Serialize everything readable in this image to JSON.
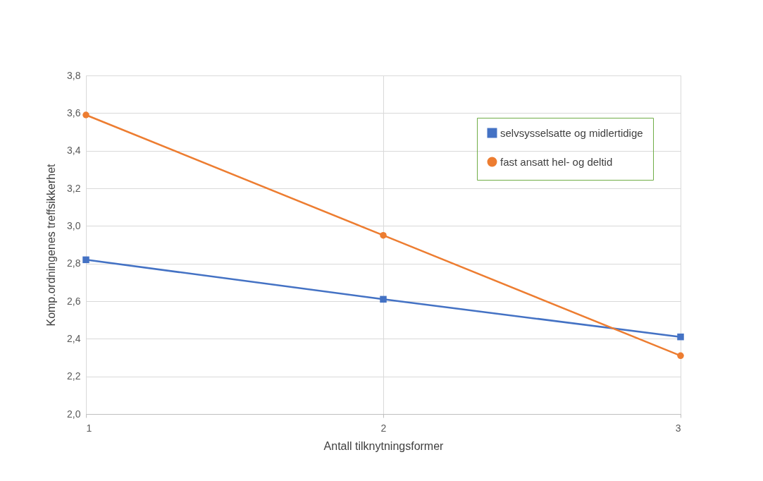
{
  "chart_data": {
    "type": "line",
    "xlabel": "Antall tilknytningsformer",
    "ylabel": "Komp.ordningenes treffsikkerhet",
    "x": [
      1,
      2,
      3
    ],
    "xlim": [
      1,
      3
    ],
    "xticks": [
      1,
      2,
      3
    ],
    "ylim": [
      2.0,
      3.8
    ],
    "yticks": [
      {
        "value": 2.0,
        "label": "2,0"
      },
      {
        "value": 2.2,
        "label": "2,2"
      },
      {
        "value": 2.4,
        "label": "2,4"
      },
      {
        "value": 2.6,
        "label": "2,6"
      },
      {
        "value": 2.8,
        "label": "2,8"
      },
      {
        "value": 3.0,
        "label": "3,0"
      },
      {
        "value": 3.2,
        "label": "3,2"
      },
      {
        "value": 3.4,
        "label": "3,4"
      },
      {
        "value": 3.6,
        "label": "3,6"
      },
      {
        "value": 3.8,
        "label": "3,8"
      }
    ],
    "grid": true,
    "legend": "top right",
    "line_style": "solid",
    "series": [
      {
        "name": "selvsysselsatte og midlertidige",
        "color": "#4472c4",
        "marker": "square",
        "values": [
          2.82,
          2.61,
          2.41
        ]
      },
      {
        "name": "fast ansatt hel- og deltid",
        "color": "#ed7d31",
        "marker": "circle",
        "values": [
          3.59,
          2.95,
          2.31
        ]
      }
    ]
  }
}
